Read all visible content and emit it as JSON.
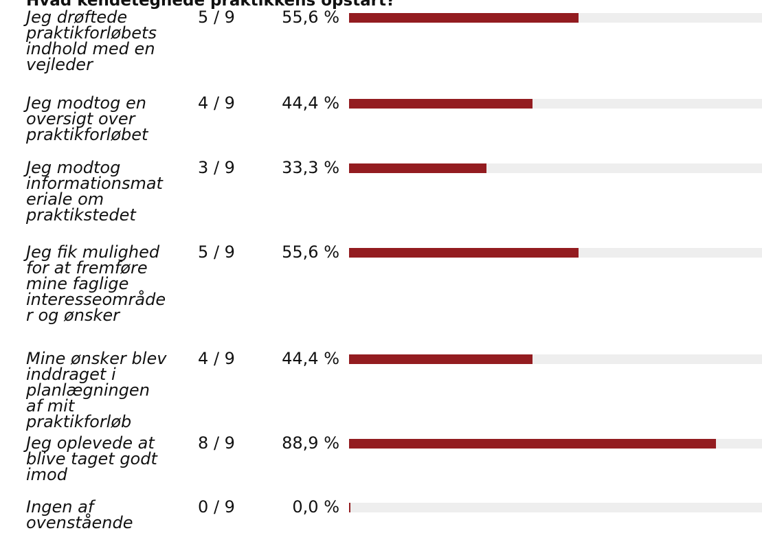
{
  "title": "Hvad kendetegnede praktikkens opstart?",
  "chart_data": {
    "type": "bar",
    "orientation": "horizontal",
    "title": "Hvad kendetegnede praktikkens opstart?",
    "xlim": [
      0,
      100
    ],
    "bar_color": "#931c20",
    "track_color": "#eeeeee",
    "categories": [
      "Jeg drøftede praktikforløbets indhold med en vejleder",
      "Jeg modtog en oversigt over praktikforløbet",
      "Jeg modtog informationsmateriale om praktikstedet",
      "Jeg fik mulighed for at fremføre mine faglige interesseområder og ønsker",
      "Mine ønsker blev inddraget i planlægningen af mit praktikforløb",
      "Jeg oplevede at blive taget godt imod",
      "Ingen af ovenstående"
    ],
    "counts": [
      "5 / 9",
      "4 / 9",
      "3 / 9",
      "5 / 9",
      "4 / 9",
      "8 / 9",
      "0 / 9"
    ],
    "percent_labels": [
      "55,6 %",
      "44,4 %",
      "33,3 %",
      "55,6 %",
      "44,4 %",
      "88,9 %",
      "0,0 %"
    ],
    "values": [
      55.6,
      44.4,
      33.3,
      55.6,
      44.4,
      88.9,
      0.0
    ]
  }
}
